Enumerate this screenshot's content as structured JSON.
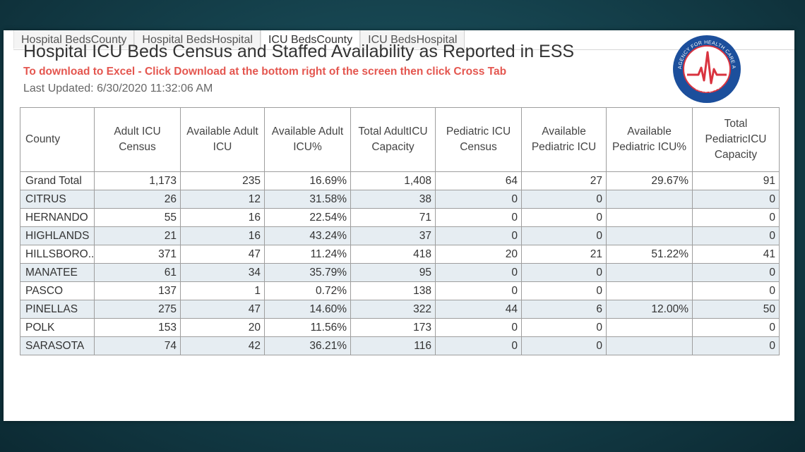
{
  "tabs": [
    {
      "label": "Hospital BedsCounty",
      "active": false
    },
    {
      "label": "Hospital BedsHospital",
      "active": false
    },
    {
      "label": "ICU BedsCounty",
      "active": true
    },
    {
      "label": "ICU BedsHospital",
      "active": false
    }
  ],
  "header": {
    "title": "Hospital ICU Beds Census and Staffed Availability as Reported in ESS",
    "subtitle": "To download to Excel - Click Download at the bottom right of the screen then click Cross Tab",
    "updated": "Last Updated: 6/30/2020 11:32:06 AM",
    "logo_text": "AGENCY FOR HEALTH CARE ADMINISTRATION",
    "logo_bottom_text": "STATE OF FLORIDA"
  },
  "table": {
    "columns": [
      "County",
      "Adult ICU Census",
      "Available Adult ICU",
      "Available Adult ICU%",
      "Total AdultICU Capacity",
      "Pediatric ICU Census",
      "Available Pediatric ICU",
      "Available Pediatric ICU%",
      "Total PediatricICU Capacity"
    ],
    "rows": [
      [
        "Grand Total",
        "1,173",
        "235",
        "16.69%",
        "1,408",
        "64",
        "27",
        "29.67%",
        "91"
      ],
      [
        "CITRUS",
        "26",
        "12",
        "31.58%",
        "38",
        "0",
        "0",
        "",
        "0"
      ],
      [
        "HERNANDO",
        "55",
        "16",
        "22.54%",
        "71",
        "0",
        "0",
        "",
        "0"
      ],
      [
        "HIGHLANDS",
        "21",
        "16",
        "43.24%",
        "37",
        "0",
        "0",
        "",
        "0"
      ],
      [
        "HILLSBORO..",
        "371",
        "47",
        "11.24%",
        "418",
        "20",
        "21",
        "51.22%",
        "41"
      ],
      [
        "MANATEE",
        "61",
        "34",
        "35.79%",
        "95",
        "0",
        "0",
        "",
        "0"
      ],
      [
        "PASCO",
        "137",
        "1",
        "0.72%",
        "138",
        "0",
        "0",
        "",
        "0"
      ],
      [
        "PINELLAS",
        "275",
        "47",
        "14.60%",
        "322",
        "44",
        "6",
        "12.00%",
        "50"
      ],
      [
        "POLK",
        "153",
        "20",
        "11.56%",
        "173",
        "0",
        "0",
        "",
        "0"
      ],
      [
        "SARASOTA",
        "74",
        "42",
        "36.21%",
        "116",
        "0",
        "0",
        "",
        "0"
      ]
    ]
  },
  "colors": {
    "accent_red": "#e4564f",
    "logo_blue": "#1c4f9c",
    "logo_red": "#d9333f",
    "row_shade": "#e6edf2"
  }
}
